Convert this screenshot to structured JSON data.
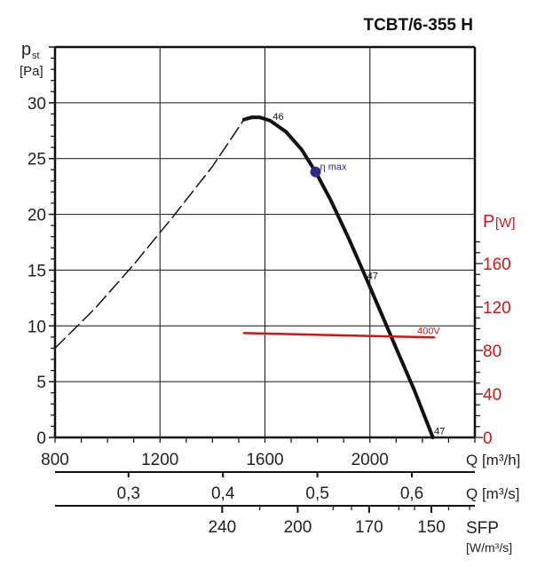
{
  "chart_data": {
    "type": "line",
    "title": "TCBT/6-355 H",
    "y_label_main": "p",
    "y_label_sub": "st",
    "y_unit": "[Pa]",
    "y2_label": "P",
    "y2_unit": "[W]",
    "xlabel": "Q [m³/h]",
    "x2label": "Q [m³/s]",
    "x3label": "SFP",
    "x3unit": "[W/m³/s]",
    "xlim": [
      800,
      2400
    ],
    "ylim": [
      0,
      35
    ],
    "y2lim": [
      0,
      180
    ],
    "grid": true,
    "x_ticks": [
      "800",
      "1200",
      "1600",
      "2000"
    ],
    "x_tick_values": [
      800,
      1200,
      1600,
      2000
    ],
    "y_ticks": [
      "0",
      "5",
      "10",
      "15",
      "20",
      "25",
      "30"
    ],
    "y_tick_values": [
      0,
      5,
      10,
      15,
      20,
      25,
      30
    ],
    "y2_ticks": [
      "0",
      "40",
      "80",
      "120",
      "160"
    ],
    "y2_tick_values": [
      0,
      40,
      80,
      120,
      160
    ],
    "x2_ticks": [
      "0,3",
      "0,4",
      "0,5",
      "0,6"
    ],
    "x2_tick_values": [
      0.3,
      0.4,
      0.5,
      0.6
    ],
    "x3_ticks": [
      "240",
      "200",
      "170",
      "150"
    ],
    "x3_tick_q_positions": [
      1437,
      1725,
      1997,
      2234
    ],
    "series": [
      {
        "name": "pressure-unstable",
        "style": "dashed",
        "color": "#111111",
        "x": [
          800,
          950,
          1100,
          1250,
          1400,
          1520
        ],
        "y": [
          8,
          11.5,
          15.5,
          19.8,
          24.3,
          28.5
        ]
      },
      {
        "name": "pressure",
        "style": "solid",
        "color": "#111111",
        "x": [
          1520,
          1550,
          1580,
          1620,
          1680,
          1740,
          1793,
          1850,
          1920,
          1980,
          2040,
          2100,
          2170,
          2240
        ],
        "y": [
          28.5,
          28.7,
          28.7,
          28.4,
          27.4,
          25.8,
          23.8,
          21.3,
          17.8,
          14.6,
          11.3,
          8.0,
          4.2,
          0
        ]
      },
      {
        "name": "400V",
        "style": "solid",
        "color": "#d01515",
        "axis": "y2",
        "x": [
          1520,
          2245
        ],
        "y": [
          96,
          92
        ]
      }
    ],
    "annotations": [
      {
        "text": "46",
        "x": 1630,
        "y": 28.8
      },
      {
        "text": "47",
        "x": 1990,
        "y": 14.5
      },
      {
        "text": "47",
        "x": 2245,
        "y": 0.6
      },
      {
        "text": "η max",
        "x": 1810,
        "y": 24.3,
        "color": "#2a2a80"
      },
      {
        "text": "400V",
        "x": 2180,
        "y": 9.6,
        "color": "#d01515"
      }
    ],
    "eta_max_point": {
      "x": 1793,
      "y": 23.8,
      "color": "#2a2a8a"
    }
  }
}
